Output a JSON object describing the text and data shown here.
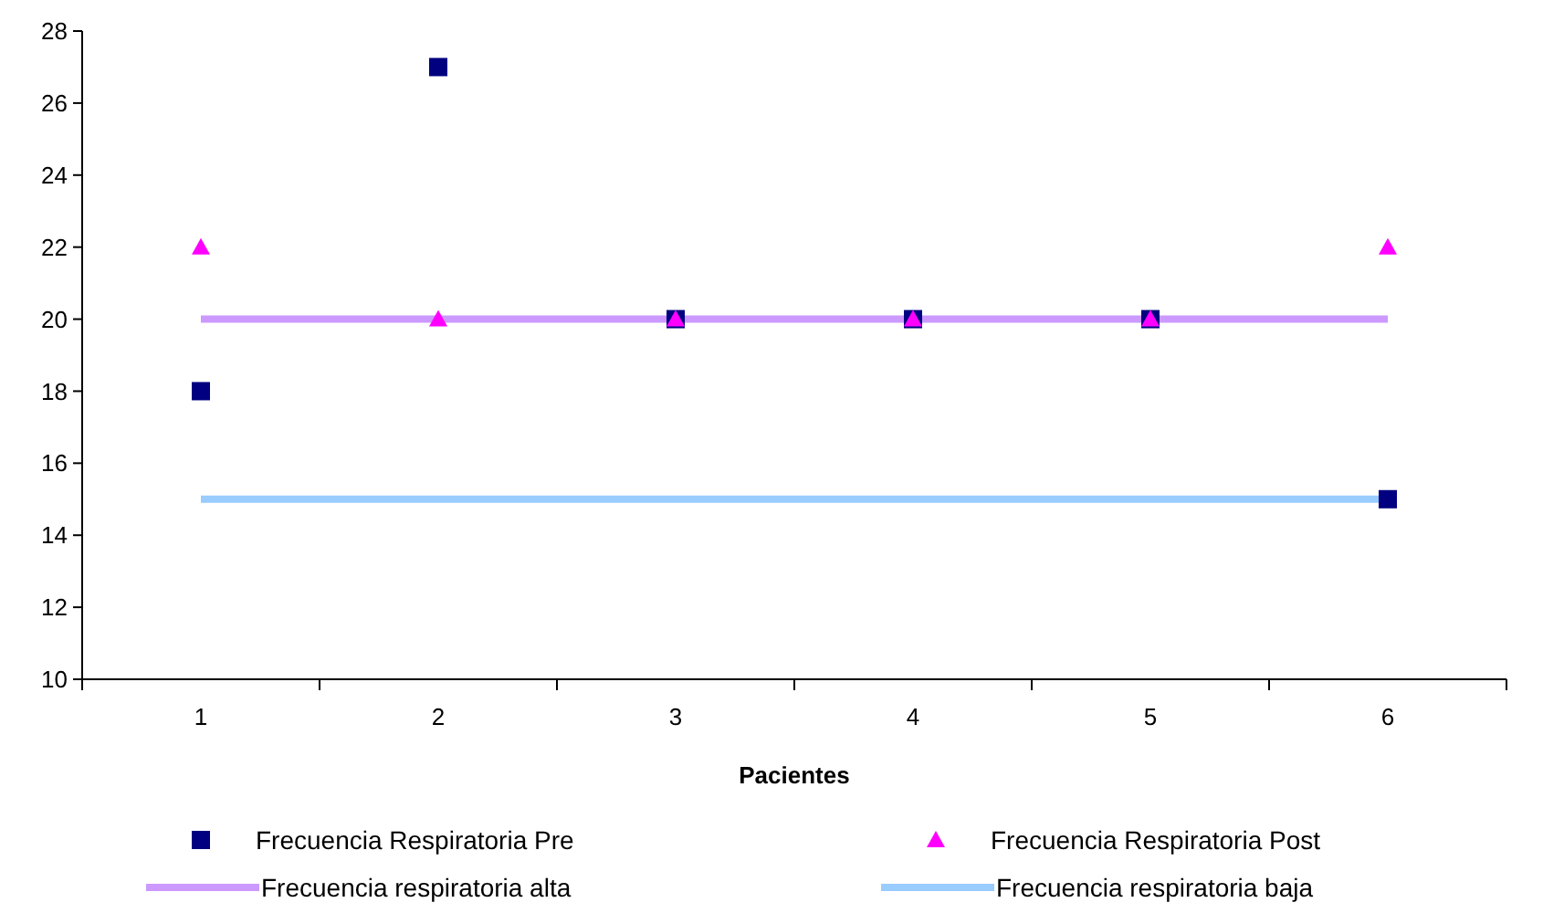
{
  "chart_data": {
    "type": "scatter",
    "xlabel": "Pacientes",
    "categories": [
      "1",
      "2",
      "3",
      "4",
      "5",
      "6"
    ],
    "ylim": [
      10,
      28
    ],
    "yticks": [
      10,
      12,
      14,
      16,
      18,
      20,
      22,
      24,
      26,
      28
    ],
    "grid": false,
    "legend": "bottom",
    "series": [
      {
        "name": "Frecuencia Respiratoria Pre",
        "marker": "square",
        "color": "#000080",
        "values": [
          18,
          27,
          20,
          20,
          20,
          15
        ]
      },
      {
        "name": "Frecuencia Respiratoria Post",
        "marker": "triangle",
        "color": "#ff00ff",
        "values": [
          22,
          20,
          20,
          20,
          20,
          22
        ]
      },
      {
        "name": "Frecuencia respiratoria alta",
        "type": "line",
        "marker": "none",
        "color": "#cc99ff",
        "values": [
          20,
          20,
          20,
          20,
          20,
          20
        ]
      },
      {
        "name": "Frecuencia respiratoria baja",
        "type": "line",
        "marker": "none",
        "color": "#99ccff",
        "values": [
          15,
          15,
          15,
          15,
          15,
          15
        ]
      }
    ]
  }
}
